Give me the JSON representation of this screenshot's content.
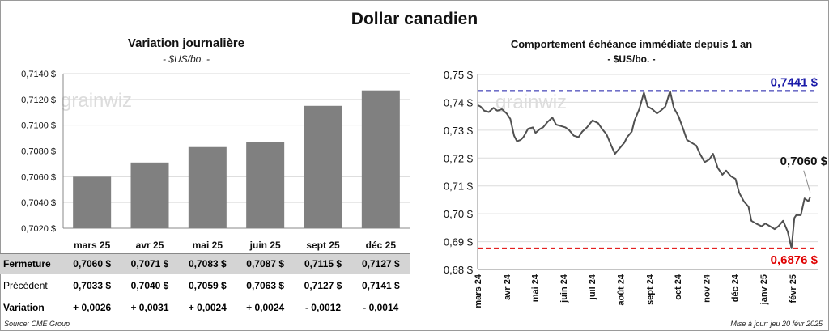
{
  "title": "Dollar canadien",
  "left": {
    "title": "Variation  journalière",
    "unit": "- $US/bo. -"
  },
  "right": {
    "title": "Comportement échéance immédiate depuis 1 an",
    "unit": "- $US/bo. -"
  },
  "table": {
    "row_labels": [
      "Fermeture",
      "Précédent",
      "Variation"
    ],
    "fermeture": [
      "0,7060  $",
      "0,7071  $",
      "0,7083  $",
      "0,7087  $",
      "0,7115  $",
      "0,7127  $"
    ],
    "precedent": [
      "0,7033  $",
      "0,7040  $",
      "0,7059  $",
      "0,7063  $",
      "0,7127  $",
      "0,7141  $"
    ],
    "variation": [
      "+ 0,0026",
      "+ 0,0031",
      "+ 0,0024",
      "+ 0,0024",
      "- 0,0012",
      "- 0,0014"
    ]
  },
  "source": "Source: CME Group",
  "updated": "Mise à jour: jeu 20 févr 2025",
  "watermark": "grainwiz",
  "colors": {
    "bar": "#808080",
    "line": "#505050",
    "high": "#1a1aa8",
    "low": "#e00000",
    "positive": "#1a8a1a",
    "negative": "#e00000"
  },
  "chart_data": [
    {
      "type": "bar",
      "title": "Variation  journalière",
      "subtitle": "- $US/bo. -",
      "categories": [
        "mars 25",
        "avr 25",
        "mai 25",
        "juin 25",
        "sept 25",
        "déc 25"
      ],
      "values": [
        0.706,
        0.7071,
        0.7083,
        0.7087,
        0.7115,
        0.7127
      ],
      "ylim": [
        0.702,
        0.714
      ],
      "yticks": [
        "0,7020 $",
        "0,7040 $",
        "0,7060 $",
        "0,7080 $",
        "0,7100 $",
        "0,7120 $",
        "0,7140 $"
      ],
      "grid": true
    },
    {
      "type": "line",
      "title": "Comportement échéance immédiate depuis 1 an",
      "subtitle": "- $US/bo. -",
      "x_tick_labels": [
        "mars 24",
        "avr 24",
        "mai 24",
        "juin 24",
        "juil 24",
        "août 24",
        "sept 24",
        "oct 24",
        "nov 24",
        "déc 24",
        "janv 25",
        "févr 25"
      ],
      "ylim": [
        0.68,
        0.75
      ],
      "yticks": [
        "0,68 $",
        "0,69 $",
        "0,70 $",
        "0,71 $",
        "0,72 $",
        "0,73 $",
        "0,74 $",
        "0,75 $"
      ],
      "high": {
        "value": 0.7441,
        "label": "0,7441  $"
      },
      "low": {
        "value": 0.6876,
        "label": "0,6876  $"
      },
      "last": {
        "value": 0.706,
        "label": "0,7060 $"
      },
      "series": [
        {
          "x": [
            "2024-03-01",
            "2024-03-04",
            "2024-03-08",
            "2024-03-13",
            "2024-03-18",
            "2024-03-22",
            "2024-03-27",
            "2024-04-01",
            "2024-04-05",
            "2024-04-09",
            "2024-04-12",
            "2024-04-16",
            "2024-04-19",
            "2024-04-24",
            "2024-04-29",
            "2024-05-02",
            "2024-05-07",
            "2024-05-10",
            "2024-05-15",
            "2024-05-20",
            "2024-05-24",
            "2024-05-29",
            "2024-06-03",
            "2024-06-07",
            "2024-06-12",
            "2024-06-17",
            "2024-06-21",
            "2024-06-26",
            "2024-07-02",
            "2024-07-08",
            "2024-07-12",
            "2024-07-17",
            "2024-07-22",
            "2024-07-26",
            "2024-07-31",
            "2024-08-05",
            "2024-08-08",
            "2024-08-13",
            "2024-08-16",
            "2024-08-21",
            "2024-08-26",
            "2024-08-30",
            "2024-09-04",
            "2024-09-09",
            "2024-09-13",
            "2024-09-18",
            "2024-09-23",
            "2024-09-27",
            "2024-10-02",
            "2024-10-07",
            "2024-10-11",
            "2024-10-16",
            "2024-10-21",
            "2024-10-25",
            "2024-10-30",
            "2024-11-04",
            "2024-11-08",
            "2024-11-13",
            "2024-11-18",
            "2024-11-22",
            "2024-11-27",
            "2024-12-02",
            "2024-12-06",
            "2024-12-11",
            "2024-12-16",
            "2024-12-19",
            "2024-12-24",
            "2024-12-30",
            "2025-01-03",
            "2025-01-08",
            "2025-01-13",
            "2025-01-17",
            "2025-01-22",
            "2025-01-27",
            "2025-01-31",
            "2025-02-03",
            "2025-02-05",
            "2025-02-10",
            "2025-02-14",
            "2025-02-18",
            "2025-02-20"
          ],
          "values": [
            0.739,
            0.7385,
            0.737,
            0.7365,
            0.738,
            0.737,
            0.7375,
            0.736,
            0.734,
            0.728,
            0.726,
            0.7265,
            0.7275,
            0.7305,
            0.731,
            0.729,
            0.7305,
            0.731,
            0.733,
            0.7345,
            0.732,
            0.7315,
            0.731,
            0.73,
            0.728,
            0.7275,
            0.7295,
            0.731,
            0.7335,
            0.7325,
            0.7305,
            0.7285,
            0.7245,
            0.7215,
            0.7235,
            0.7255,
            0.7275,
            0.7295,
            0.7335,
            0.7375,
            0.7435,
            0.7385,
            0.7375,
            0.736,
            0.737,
            0.7385,
            0.744,
            0.738,
            0.735,
            0.7305,
            0.7265,
            0.7255,
            0.7245,
            0.7215,
            0.7185,
            0.7195,
            0.7215,
            0.7165,
            0.714,
            0.7155,
            0.7135,
            0.7125,
            0.7075,
            0.7045,
            0.7025,
            0.6975,
            0.6965,
            0.6955,
            0.6965,
            0.6955,
            0.6945,
            0.6955,
            0.6975,
            0.6935,
            0.6876,
            0.6985,
            0.6995,
            0.6995,
            0.7055,
            0.7045,
            0.706
          ]
        }
      ]
    }
  ]
}
